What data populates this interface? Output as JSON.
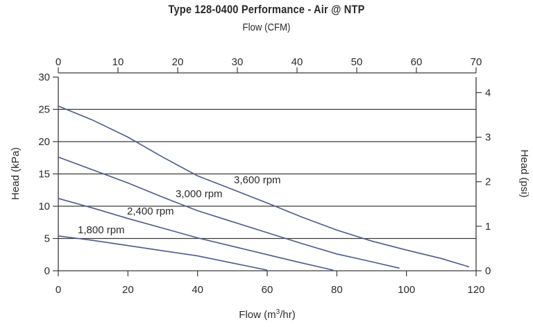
{
  "chart_data": {
    "type": "line",
    "title": "Type 128-0400 Performance - Air @ NTP",
    "top_axis_label": "Flow (CFM)",
    "xlabel": "Flow (m³/hr)",
    "ylabel": "Head (kPa)",
    "y2label": "Head (psi)",
    "xlim": [
      0,
      120
    ],
    "ylim": [
      0,
      30
    ],
    "x2lim": [
      0,
      70
    ],
    "y2lim": [
      0,
      4.35
    ],
    "x_ticks": [
      0,
      20,
      40,
      60,
      80,
      100,
      120
    ],
    "y_ticks": [
      0,
      5,
      10,
      15,
      20,
      25,
      30
    ],
    "x2_ticks": [
      0,
      10,
      20,
      30,
      40,
      50,
      60,
      70
    ],
    "y2_ticks": [
      0,
      1,
      2,
      3,
      4
    ],
    "gridlines_y": [
      5,
      10,
      15,
      20,
      25
    ],
    "line_color": "#4a5a8c",
    "series": [
      {
        "name": "1,800 rpm",
        "points": [
          [
            0,
            5.4
          ],
          [
            10,
            4.7
          ],
          [
            20,
            3.9
          ],
          [
            30,
            3.1
          ],
          [
            40,
            2.3
          ],
          [
            50,
            1.2
          ],
          [
            60,
            0.1
          ]
        ]
      },
      {
        "name": "2,400 rpm",
        "points": [
          [
            0,
            11.2
          ],
          [
            10,
            9.7
          ],
          [
            20,
            8.1
          ],
          [
            30,
            6.6
          ],
          [
            40,
            5.1
          ],
          [
            50,
            3.8
          ],
          [
            60,
            2.5
          ],
          [
            70,
            1.2
          ],
          [
            79,
            0.1
          ]
        ]
      },
      {
        "name": "3,000 rpm",
        "points": [
          [
            0,
            17.6
          ],
          [
            10,
            15.6
          ],
          [
            20,
            13.6
          ],
          [
            30,
            11.4
          ],
          [
            40,
            9.3
          ],
          [
            50,
            7.6
          ],
          [
            60,
            5.9
          ],
          [
            70,
            4.2
          ],
          [
            80,
            2.6
          ],
          [
            90,
            1.4
          ],
          [
            98,
            0.4
          ]
        ]
      },
      {
        "name": "3,600 rpm",
        "points": [
          [
            0,
            25.5
          ],
          [
            10,
            23.3
          ],
          [
            20,
            20.7
          ],
          [
            30,
            17.6
          ],
          [
            40,
            14.7
          ],
          [
            50,
            12.6
          ],
          [
            60,
            10.5
          ],
          [
            70,
            8.3
          ],
          [
            80,
            6.3
          ],
          [
            90,
            4.6
          ],
          [
            100,
            3.2
          ],
          [
            110,
            1.9
          ],
          [
            118,
            0.6
          ]
        ]
      }
    ]
  }
}
